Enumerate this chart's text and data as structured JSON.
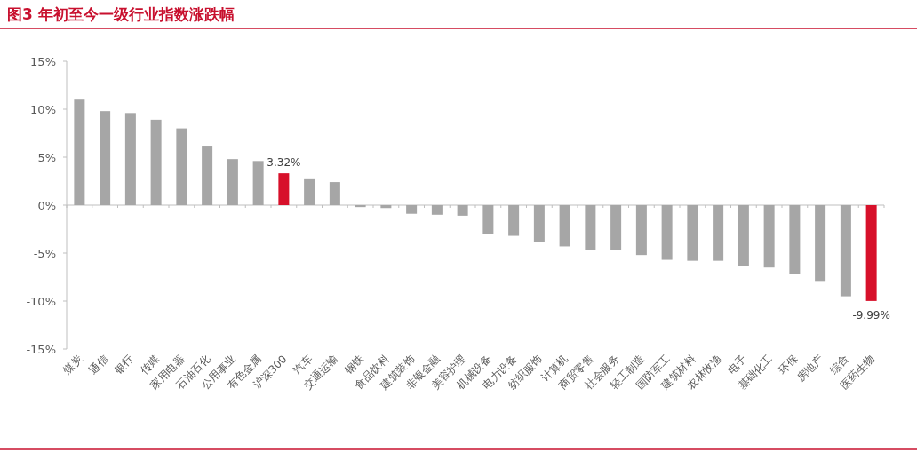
{
  "chart_data": {
    "type": "bar",
    "title": "图3  年初至今一级行业指数涨跌幅",
    "categories": [
      "煤炭",
      "通信",
      "银行",
      "传媒",
      "家用电器",
      "石油石化",
      "公用事业",
      "有色金属",
      "沪深300",
      "汽车",
      "交通运输",
      "钢铁",
      "食品饮料",
      "建筑装饰",
      "非银金融",
      "美容护理",
      "机械设备",
      "电力设备",
      "纺织服饰",
      "计算机",
      "商贸零售",
      "社会服务",
      "轻工制造",
      "国防军工",
      "建筑材料",
      "农林牧渔",
      "电子",
      "基础化工",
      "环保",
      "房地产",
      "综合",
      "医药生物"
    ],
    "values": [
      11.0,
      9.8,
      9.6,
      8.9,
      8.0,
      6.2,
      4.8,
      4.6,
      3.32,
      2.7,
      2.4,
      -0.2,
      -0.3,
      -0.9,
      -1.0,
      -1.1,
      -3.0,
      -3.2,
      -3.8,
      -4.3,
      -4.7,
      -4.7,
      -5.2,
      -5.7,
      -5.8,
      -5.8,
      -6.3,
      -6.5,
      -7.2,
      -7.9,
      -9.5,
      -9.99
    ],
    "colors": [
      "#a6a6a6",
      "#a6a6a6",
      "#a6a6a6",
      "#a6a6a6",
      "#a6a6a6",
      "#a6a6a6",
      "#a6a6a6",
      "#a6a6a6",
      "#d7102a",
      "#a6a6a6",
      "#a6a6a6",
      "#a6a6a6",
      "#a6a6a6",
      "#a6a6a6",
      "#a6a6a6",
      "#a6a6a6",
      "#a6a6a6",
      "#a6a6a6",
      "#a6a6a6",
      "#a6a6a6",
      "#a6a6a6",
      "#a6a6a6",
      "#a6a6a6",
      "#a6a6a6",
      "#a6a6a6",
      "#a6a6a6",
      "#a6a6a6",
      "#a6a6a6",
      "#a6a6a6",
      "#a6a6a6",
      "#a6a6a6",
      "#d7102a"
    ],
    "value_labels": [
      null,
      null,
      null,
      null,
      null,
      null,
      null,
      null,
      "3.32%",
      null,
      null,
      null,
      null,
      null,
      null,
      null,
      null,
      null,
      null,
      null,
      null,
      null,
      null,
      null,
      null,
      null,
      null,
      null,
      null,
      null,
      null,
      "-9.99%"
    ],
    "ylim": [
      -15,
      15
    ],
    "yticks": [
      {
        "value": 15,
        "label": "15%"
      },
      {
        "value": 10,
        "label": "10%"
      },
      {
        "value": 5,
        "label": "5%"
      },
      {
        "value": 0,
        "label": "0%"
      },
      {
        "value": -5,
        "label": "-5%"
      },
      {
        "value": -10,
        "label": "-10%"
      },
      {
        "value": -15,
        "label": "-15%"
      }
    ],
    "tick_labels": true
  }
}
